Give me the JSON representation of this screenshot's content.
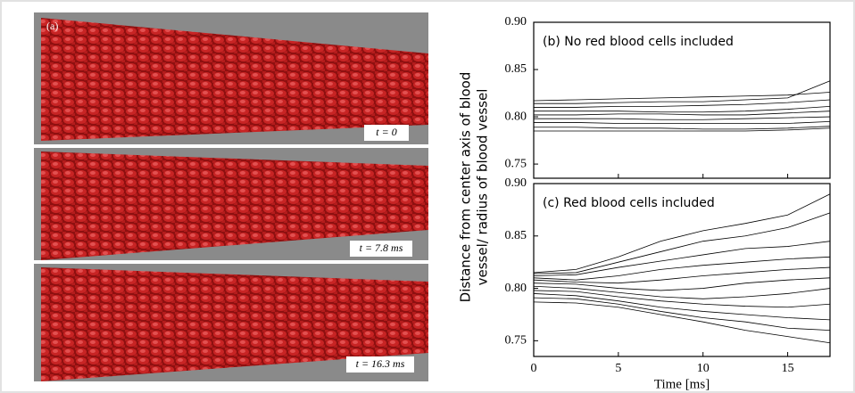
{
  "figure": {
    "panel_a": {
      "label": "(a)",
      "times": [
        "t = 0",
        "t = 7.8 ms",
        "t = 16.3 ms"
      ]
    },
    "y_label": [
      "Distance from center axis of blood",
      "vessel/ radius of blood vessel"
    ]
  },
  "chart_data": [
    {
      "type": "line",
      "title": "(b) No red blood cells included",
      "x": [
        0,
        2.5,
        5,
        7.5,
        10,
        12.5,
        15,
        17.5
      ],
      "xlim": [
        0,
        17.5
      ],
      "xticks": [
        0,
        5,
        10,
        15
      ],
      "ylim": [
        0.735,
        0.9
      ],
      "yticks": [
        0.75,
        {
          "value": 0.8,
          "label": "0.80"
        },
        0.85,
        {
          "value": 0.9,
          "label": "0.90"
        }
      ],
      "series": [
        {
          "color": "#000000",
          "values": [
            0.817,
            0.818,
            0.819,
            0.82,
            0.821,
            0.822,
            0.823,
            0.826
          ]
        },
        {
          "color": "#000000",
          "values": [
            0.814,
            0.814,
            0.815,
            0.816,
            0.816,
            0.818,
            0.82,
            0.838
          ]
        },
        {
          "color": "#000000",
          "values": [
            0.81,
            0.81,
            0.811,
            0.811,
            0.812,
            0.813,
            0.815,
            0.818
          ]
        },
        {
          "color": "#000000",
          "values": [
            0.806,
            0.806,
            0.806,
            0.805,
            0.805,
            0.806,
            0.808,
            0.811
          ]
        },
        {
          "color": "#000000",
          "values": [
            0.802,
            0.802,
            0.803,
            0.803,
            0.802,
            0.802,
            0.804,
            0.806
          ]
        },
        {
          "color": "#000000",
          "values": [
            0.798,
            0.798,
            0.798,
            0.797,
            0.797,
            0.798,
            0.799,
            0.8
          ]
        },
        {
          "color": "#000000",
          "values": [
            0.794,
            0.794,
            0.793,
            0.793,
            0.793,
            0.793,
            0.793,
            0.795
          ]
        },
        {
          "color": "#000000",
          "values": [
            0.789,
            0.789,
            0.788,
            0.788,
            0.787,
            0.787,
            0.788,
            0.79
          ]
        },
        {
          "color": "#000000",
          "values": [
            0.785,
            0.785,
            0.785,
            0.785,
            0.785,
            0.785,
            0.786,
            0.788
          ]
        }
      ]
    },
    {
      "type": "line",
      "title": "(c) Red blood cells included",
      "x_label": "Time [ms]",
      "x": [
        0,
        2.5,
        5,
        7.5,
        10,
        12.5,
        15,
        17.5
      ],
      "xlim": [
        0,
        17.5
      ],
      "xticks": [
        0,
        5,
        10,
        15
      ],
      "ylim": [
        0.735,
        0.9
      ],
      "yticks": [
        0.75,
        {
          "value": 0.8,
          "label": "0.80"
        },
        0.85,
        {
          "value": 0.9,
          "label": "0.90"
        }
      ],
      "series": [
        {
          "color": "#000000",
          "values": [
            0.815,
            0.818,
            0.83,
            0.845,
            0.855,
            0.862,
            0.87,
            0.89
          ]
        },
        {
          "color": "#000000",
          "values": [
            0.814,
            0.815,
            0.825,
            0.835,
            0.845,
            0.85,
            0.858,
            0.872
          ]
        },
        {
          "color": "#000000",
          "values": [
            0.812,
            0.813,
            0.82,
            0.826,
            0.832,
            0.838,
            0.84,
            0.845
          ]
        },
        {
          "color": "#000000",
          "values": [
            0.81,
            0.808,
            0.812,
            0.818,
            0.822,
            0.825,
            0.828,
            0.83
          ]
        },
        {
          "color": "#000000",
          "values": [
            0.808,
            0.806,
            0.805,
            0.808,
            0.812,
            0.815,
            0.818,
            0.82
          ]
        },
        {
          "color": "#000000",
          "values": [
            0.805,
            0.804,
            0.8,
            0.798,
            0.8,
            0.805,
            0.808,
            0.81
          ]
        },
        {
          "color": "#000000",
          "values": [
            0.802,
            0.8,
            0.796,
            0.792,
            0.79,
            0.792,
            0.795,
            0.8
          ]
        },
        {
          "color": "#000000",
          "values": [
            0.798,
            0.797,
            0.792,
            0.788,
            0.785,
            0.783,
            0.782,
            0.785
          ]
        },
        {
          "color": "#000000",
          "values": [
            0.795,
            0.793,
            0.788,
            0.782,
            0.778,
            0.775,
            0.772,
            0.77
          ]
        },
        {
          "color": "#000000",
          "values": [
            0.791,
            0.79,
            0.785,
            0.778,
            0.772,
            0.768,
            0.762,
            0.76
          ]
        },
        {
          "color": "#000000",
          "values": [
            0.787,
            0.786,
            0.782,
            0.775,
            0.768,
            0.76,
            0.754,
            0.748
          ]
        }
      ]
    }
  ]
}
